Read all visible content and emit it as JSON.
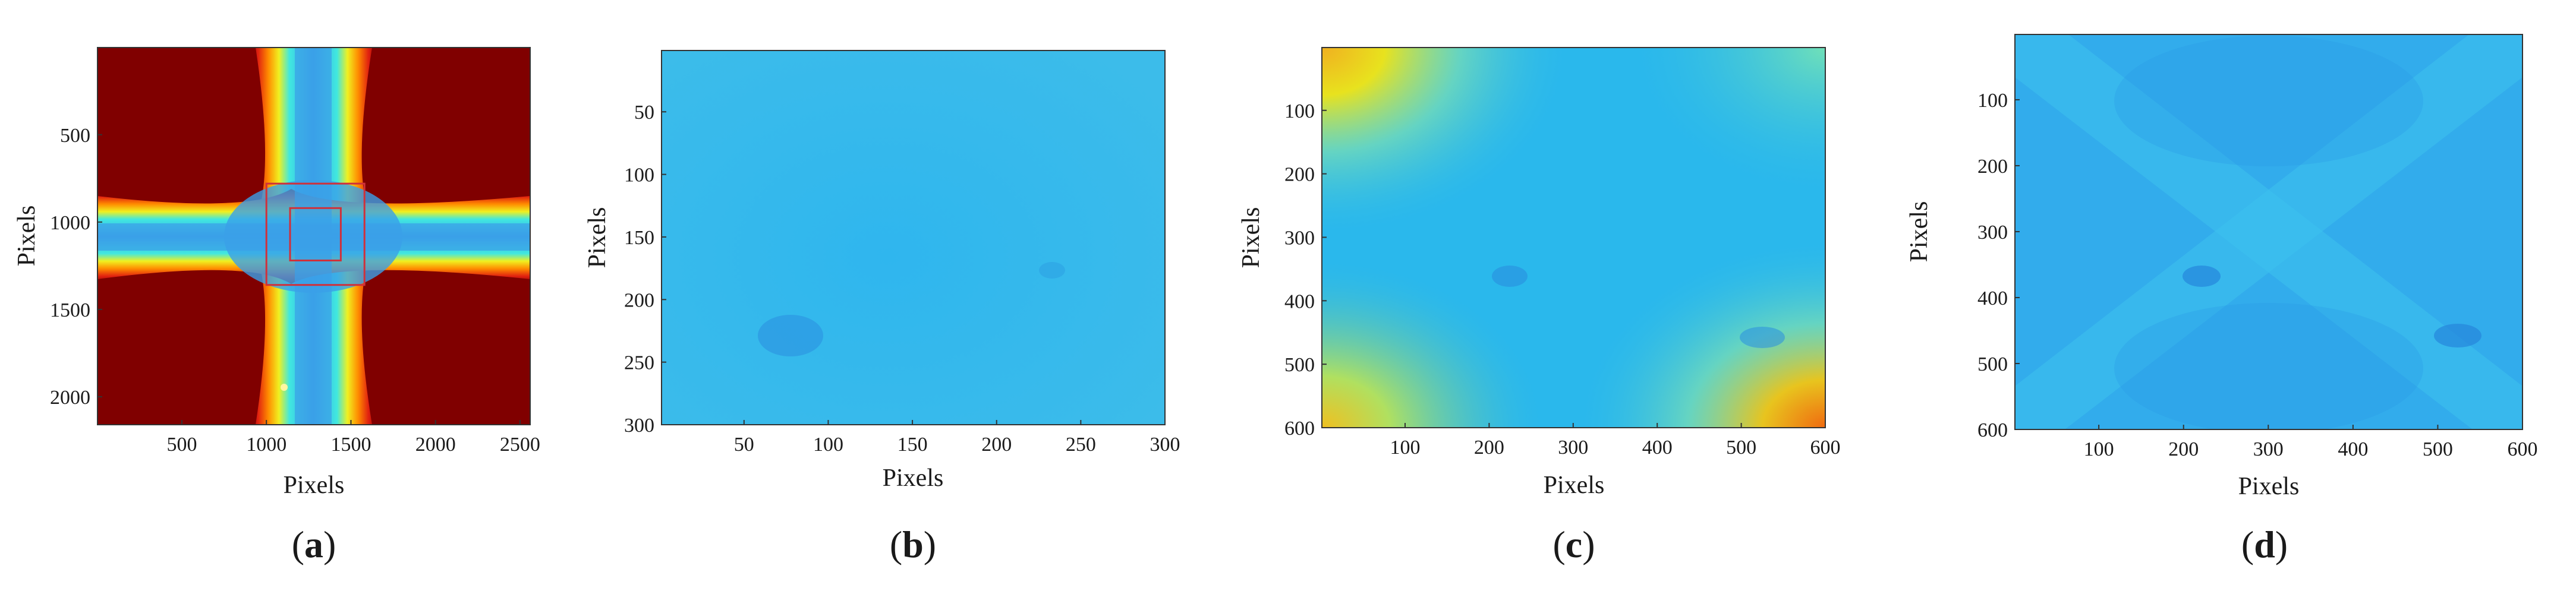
{
  "chart_data": [
    {
      "type": "heatmap",
      "panel_label": "a",
      "xlabel": "Pixels",
      "ylabel": "Pixels",
      "xlim": [
        1,
        2560
      ],
      "ylim": [
        1,
        2160
      ],
      "x_ticks": [
        500,
        1000,
        1500,
        2000,
        2500
      ],
      "y_ticks": [
        500,
        1000,
        1500,
        2000
      ],
      "colormap": "jet",
      "colors": {
        "background": "#800000",
        "center": "#3aa0e8"
      },
      "annotations": [
        {
          "type": "rectangle",
          "x": [
            1000,
            1580
          ],
          "y": [
            780,
            1360
          ],
          "color": "#d0303a"
        },
        {
          "type": "rectangle",
          "x": [
            1140,
            1440
          ],
          "y": [
            920,
            1220
          ],
          "color": "#d0303a"
        }
      ]
    },
    {
      "type": "heatmap",
      "panel_label": "b",
      "xlabel": "Pixels",
      "ylabel": "Pixels",
      "xlim": [
        1,
        300
      ],
      "ylim": [
        1,
        300
      ],
      "x_ticks": [
        50,
        100,
        150,
        200,
        250,
        300
      ],
      "y_ticks": [
        50,
        100,
        150,
        200,
        250,
        300
      ],
      "colormap": "jet",
      "colors": {
        "fill": "#33b8ec"
      }
    },
    {
      "type": "heatmap",
      "panel_label": "c",
      "xlabel": "Pixels",
      "ylabel": "Pixels",
      "xlim": [
        1,
        600
      ],
      "ylim": [
        1,
        600
      ],
      "x_ticks": [
        100,
        200,
        300,
        400,
        500,
        600
      ],
      "y_ticks": [
        100,
        200,
        300,
        400,
        500,
        600
      ],
      "colormap": "jet",
      "colors": {
        "fill": "#2ab8ec",
        "corner": "#e8e21e",
        "corner_hot": "#f06a10"
      }
    },
    {
      "type": "heatmap",
      "panel_label": "d",
      "xlabel": "Pixels",
      "ylabel": "Pixels",
      "xlim": [
        1,
        600
      ],
      "ylim": [
        1,
        600
      ],
      "x_ticks": [
        100,
        200,
        300,
        400,
        500,
        600
      ],
      "y_ticks": [
        100,
        200,
        300,
        400,
        500,
        600
      ],
      "colormap": "jet",
      "colors": {
        "fill": "#2fa8ec"
      }
    }
  ]
}
